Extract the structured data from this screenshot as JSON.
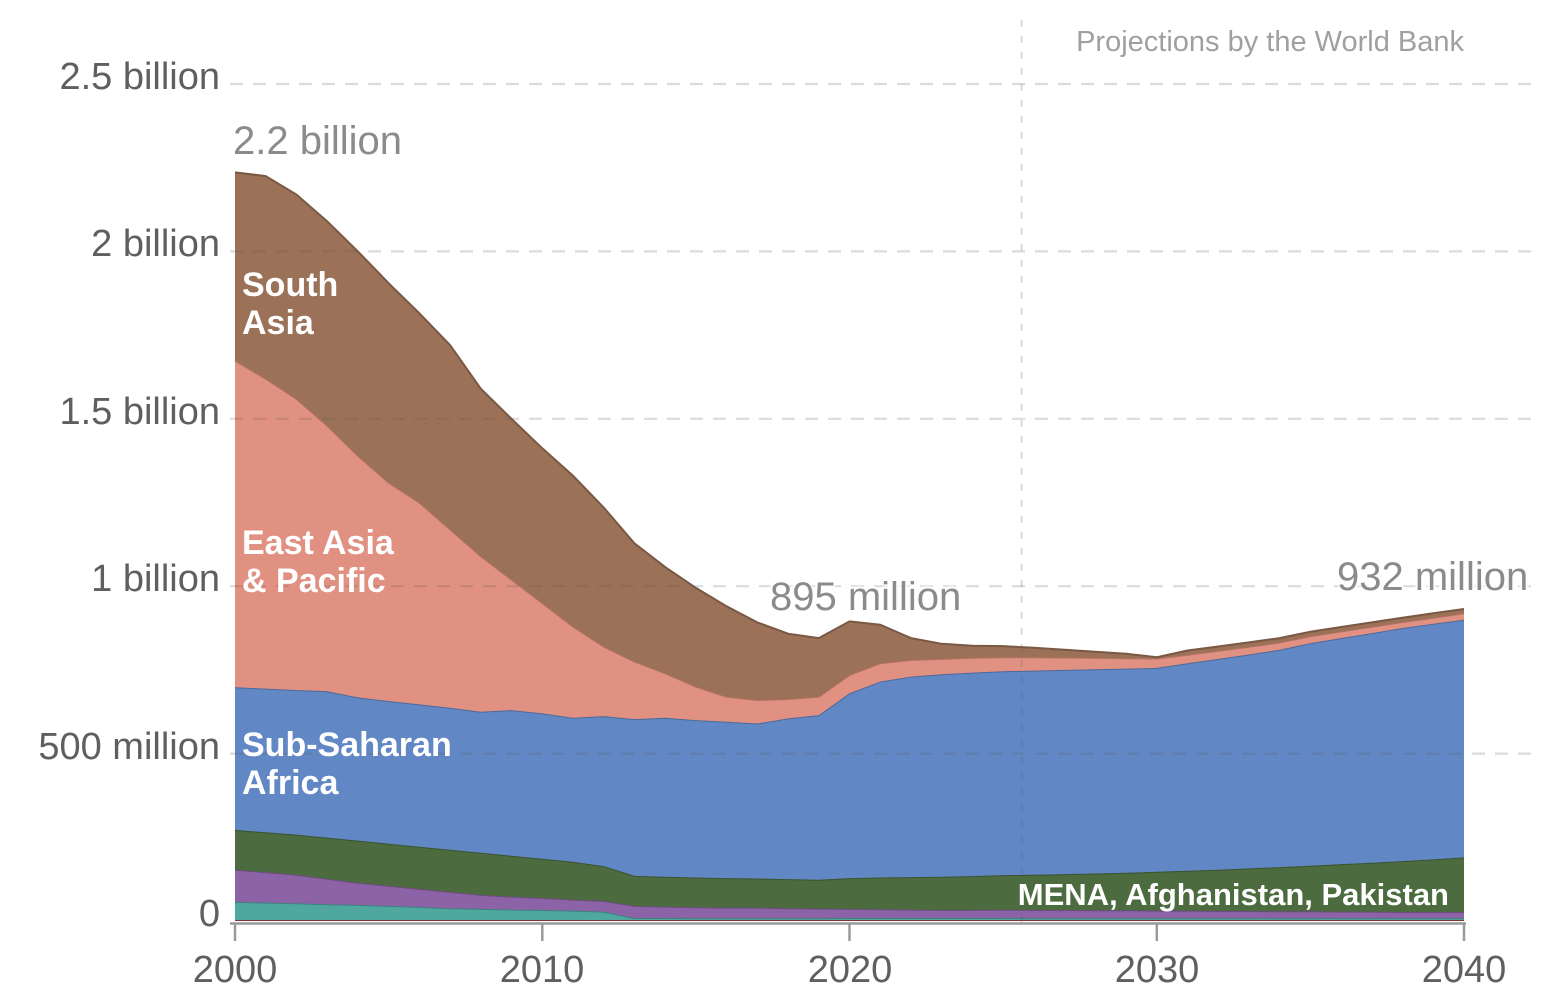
{
  "annotations": {
    "value_2000": "2.2 billion",
    "value_2020": "895 million",
    "value_2040": "932 million",
    "projections_note": "Projections by the World Bank"
  },
  "y_axis": {
    "labels": [
      "2.5 billion",
      "2 billion",
      "1.5 billion",
      "1 billion",
      "500 million",
      "0"
    ],
    "values_millions": [
      2500,
      2000,
      1500,
      1000,
      500,
      0
    ]
  },
  "x_axis": {
    "labels": [
      "2000",
      "2010",
      "2020",
      "2030",
      "2040"
    ],
    "values": [
      2000,
      2010,
      2020,
      2030,
      2040
    ]
  },
  "style": {
    "background": "#ffffff",
    "grid_color_rgba": "rgba(90,90,90,0.22)",
    "axis_color": "#9a9a9a",
    "axis_text_color": "#5f5f5f",
    "annotation_color": "#8b8b8b",
    "projection_note_color": "#a0a0a0",
    "area_label_color": "#ffffff"
  },
  "chart_data": {
    "type": "area",
    "stacked": true,
    "unit": "millions of people",
    "xlim": [
      2000,
      2040
    ],
    "ylim": [
      0,
      2500
    ],
    "grid": "dashed horizontal",
    "projection_line_year": 2025.6,
    "x": [
      2000,
      2001,
      2002,
      2003,
      2004,
      2005,
      2006,
      2007,
      2008,
      2009,
      2010,
      2011,
      2012,
      2013,
      2014,
      2015,
      2016,
      2017,
      2018,
      2019,
      2020,
      2021,
      2022,
      2023,
      2024,
      2025,
      2026,
      2027,
      2028,
      2029,
      2030,
      2031,
      2032,
      2033,
      2034,
      2035,
      2036,
      2037,
      2038,
      2039,
      2040
    ],
    "series": [
      {
        "name": "unlabeled-dark-red",
        "label": "",
        "color": "#A8453C",
        "values": [
          3,
          3,
          3,
          3,
          3,
          3,
          3,
          3,
          3,
          3,
          3,
          3,
          3,
          3,
          3,
          3,
          3,
          3,
          3,
          3,
          3,
          3,
          3,
          3,
          3,
          3,
          3,
          3,
          3,
          3,
          3,
          3,
          3,
          3,
          3,
          3,
          3,
          3,
          3,
          3,
          3
        ]
      },
      {
        "name": "unlabeled-teal",
        "label": "",
        "color": "#4EA8A0",
        "values": [
          54,
          52,
          50,
          47,
          45,
          42,
          39,
          35,
          33,
          31,
          30,
          28,
          25,
          6,
          6,
          5,
          5,
          5,
          5,
          5,
          6,
          6,
          6,
          6,
          6,
          6,
          5,
          5,
          5,
          5,
          5,
          5,
          5,
          5,
          5,
          5,
          5,
          5,
          5,
          5,
          5
        ]
      },
      {
        "name": "unlabeled-purple",
        "label": "",
        "color": "#8C63A6",
        "values": [
          96,
          91,
          85,
          76,
          66,
          60,
          54,
          49,
          42,
          39,
          36,
          33,
          32,
          36,
          34,
          33,
          32,
          32,
          30,
          29,
          27,
          26,
          25,
          24,
          24,
          25,
          25,
          25,
          24,
          24,
          23,
          23,
          22,
          22,
          21,
          21,
          20,
          20,
          19,
          19,
          19
        ]
      },
      {
        "name": "mena-afghanistan-pakistan",
        "label": "MENA, Afghanistan, Pakistan",
        "color": "#4C6B3E",
        "values": [
          119,
          119,
          120,
          123,
          126,
          126,
          126,
          126,
          126,
          122,
          117,
          113,
          104,
          90,
          89,
          89,
          88,
          87,
          87,
          86,
          92,
          95,
          97,
          99,
          101,
          103,
          105,
          107,
          110,
          112,
          116,
          119,
          123,
          127,
          132,
          136,
          142,
          146,
          152,
          157,
          163
        ]
      },
      {
        "name": "sub-saharan-africa",
        "label": "Sub-Saharan Africa",
        "color": "#6188C5",
        "values": [
          426,
          429,
          432,
          437,
          428,
          426,
          425,
          424,
          421,
          435,
          434,
          430,
          448,
          468,
          475,
          470,
          467,
          463,
          480,
          492,
          552,
          585,
          599,
          605,
          608,
          609,
          610,
          610,
          610,
          610,
          609,
          620,
          630,
          639,
          649,
          665,
          675,
          686,
          696,
          704,
          710
        ]
      },
      {
        "name": "east-asia-pacific",
        "label": "East Asia & Pacific",
        "color": "#E19181",
        "values": [
          976,
          926,
          870,
          794,
          722,
          653,
          603,
          533,
          465,
          390,
          330,
          273,
          208,
          172,
          133,
          100,
          75,
          70,
          58,
          55,
          55,
          55,
          50,
          46,
          44,
          42,
          40,
          37,
          34,
          31,
          28,
          25,
          24,
          23,
          22,
          21,
          20,
          19,
          18,
          18,
          19
        ]
      },
      {
        "name": "south-asia",
        "label": "South Asia",
        "color": "#9B7157",
        "values": [
          562,
          605,
          610,
          610,
          610,
          595,
          565,
          550,
          500,
          480,
          462,
          450,
          415,
          353,
          317,
          295,
          270,
          232,
          195,
          175,
          160,
          115,
          65,
          45,
          36,
          33,
          28,
          23,
          18,
          13,
          4,
          13,
          13,
          13,
          13,
          13,
          13,
          13,
          13,
          13,
          13
        ]
      }
    ]
  }
}
